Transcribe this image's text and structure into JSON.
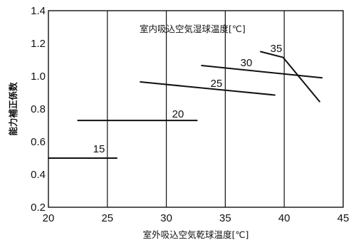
{
  "chart_data": {
    "type": "line",
    "title": "室内吸込空気湿球温度[℃]",
    "xlabel": "室外吸込空気乾球温度[℃]",
    "ylabel": "能力補正係数",
    "xlim": [
      20,
      45
    ],
    "ylim": [
      0.2,
      1.4
    ],
    "xticks": [
      "20",
      "25",
      "30",
      "35",
      "40",
      "45"
    ],
    "yticks": [
      "1.4",
      "1.2",
      "1.0",
      "0.8",
      "0.6",
      "0.4",
      "0.2"
    ],
    "grid": "x-only",
    "series": [
      {
        "name": "15",
        "x": [
          20,
          25.8
        ],
        "y": [
          0.5,
          0.5
        ]
      },
      {
        "name": "20",
        "x": [
          22.5,
          32.6
        ],
        "y": [
          0.73,
          0.73
        ]
      },
      {
        "name": "25",
        "x": [
          27.8,
          39.2
        ],
        "y": [
          0.965,
          0.885
        ]
      },
      {
        "name": "30",
        "x": [
          33,
          43.2
        ],
        "y": [
          1.065,
          0.99
        ]
      },
      {
        "name": "35",
        "x": [
          38,
          39.9,
          43
        ],
        "y": [
          1.15,
          1.115,
          0.845
        ]
      }
    ]
  }
}
